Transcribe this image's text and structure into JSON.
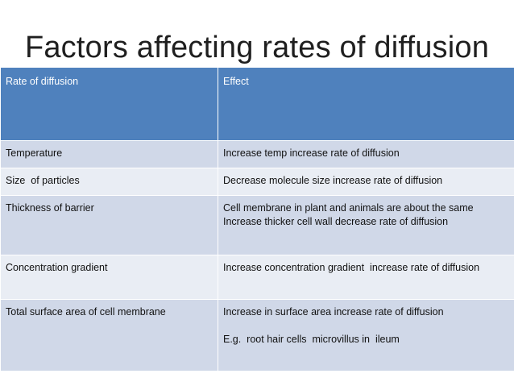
{
  "title": "Factors affecting rates of diffusion",
  "table": {
    "headers": [
      "Rate of diffusion",
      "Effect"
    ],
    "rows": [
      {
        "factor": "Temperature",
        "effect": [
          "Increase temp increase rate of diffusion"
        ]
      },
      {
        "factor": "Size  of particles",
        "effect": [
          "Decrease molecule size increase rate of diffusion"
        ]
      },
      {
        "factor": "Thickness of barrier",
        "effect": [
          "Cell membrane in plant and animals are about the same",
          "Increase thicker cell wall decrease rate of diffusion"
        ]
      },
      {
        "factor": "Concentration gradient",
        "effect": [
          "Increase concentration gradient  increase rate of diffusion"
        ]
      },
      {
        "factor": "Total surface area of cell membrane",
        "effect": [
          "Increase in surface area increase rate of diffusion",
          "",
          "E.g.  root hair cells  microvillus in  ileum"
        ]
      }
    ]
  },
  "colors": {
    "header_fill": "#4f81bd",
    "row_fill_dark": "#d0d8e8",
    "row_fill_light": "#e9edf4",
    "title_text": "#1f1f1f"
  }
}
